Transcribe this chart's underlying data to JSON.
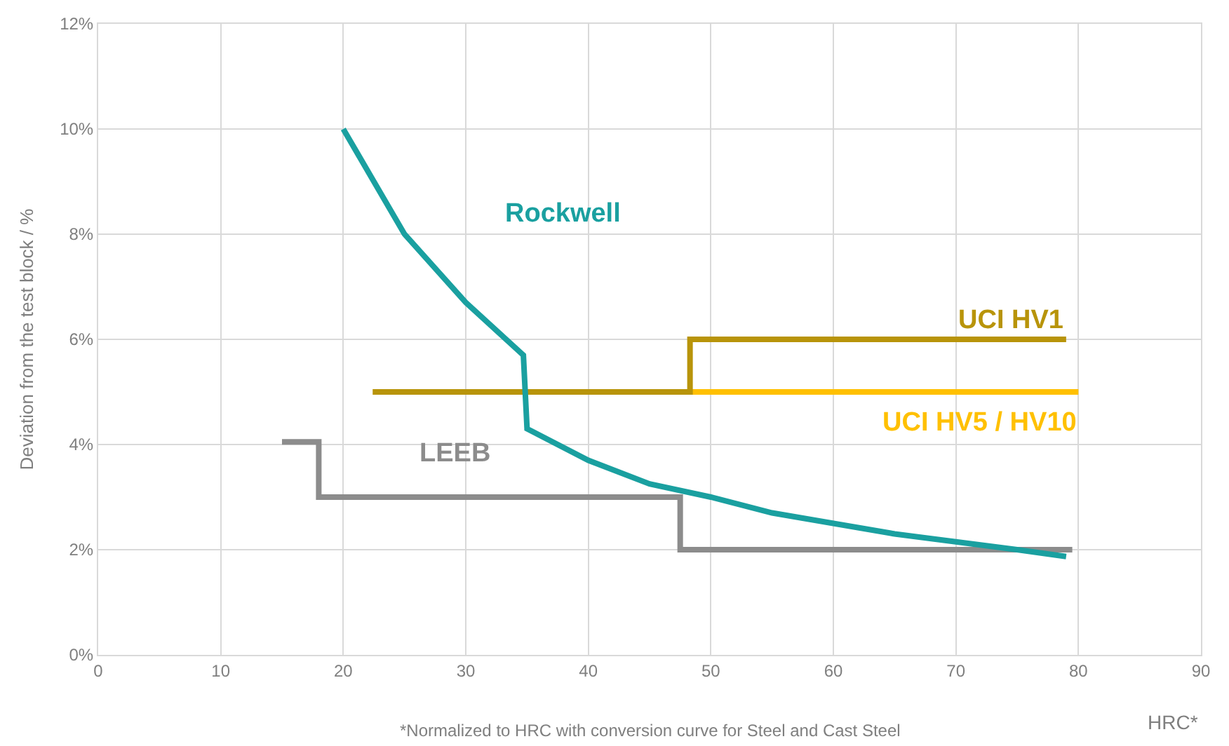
{
  "chart_data": {
    "type": "line",
    "xlabel": "HRC*",
    "ylabel": "Deviation from the test block / %",
    "annotations": [
      "*Normalized to HRC with conversion curve for Steel and Cast Steel"
    ],
    "xlim": [
      0,
      90
    ],
    "xticks": [
      0,
      10,
      20,
      30,
      40,
      50,
      60,
      70,
      80,
      90
    ],
    "ylim": [
      0,
      12
    ],
    "yticks": [
      {
        "value": 0,
        "label": "0%"
      },
      {
        "value": 2,
        "label": "2%"
      },
      {
        "value": 4,
        "label": "4%"
      },
      {
        "value": 6,
        "label": "6%"
      },
      {
        "value": 8,
        "label": "8%"
      },
      {
        "value": 10,
        "label": "10%"
      },
      {
        "value": 12,
        "label": "12%"
      }
    ],
    "grid": true,
    "legend": false,
    "marker": "none",
    "line_style": "solid",
    "series": [
      {
        "name": "UCI HV5 / HV10",
        "color": "#ffc000",
        "x": [
          48.3,
          80
        ],
        "values": [
          5,
          5
        ]
      },
      {
        "name": "UCI HV1",
        "color": "#b8940a",
        "x": [
          22.4,
          48.3,
          48.3,
          79
        ],
        "values": [
          5,
          5,
          6,
          6
        ]
      },
      {
        "name": "LEEB",
        "color": "#8c8c8c",
        "x": [
          15,
          18,
          18,
          47.5,
          47.5,
          79.5
        ],
        "values": [
          4.05,
          4.05,
          3.0,
          3.0,
          2.0,
          2.0
        ]
      },
      {
        "name": "Rockwell",
        "color": "#1aa0a0",
        "x": [
          20,
          25,
          30,
          34.7,
          35,
          40,
          45,
          50,
          55,
          60,
          65,
          70,
          75,
          79
        ],
        "values": [
          10,
          8,
          6.7,
          5.7,
          4.3,
          3.7,
          3.25,
          3.0,
          2.7,
          2.5,
          2.3,
          2.15,
          2.0,
          1.87
        ]
      }
    ]
  }
}
